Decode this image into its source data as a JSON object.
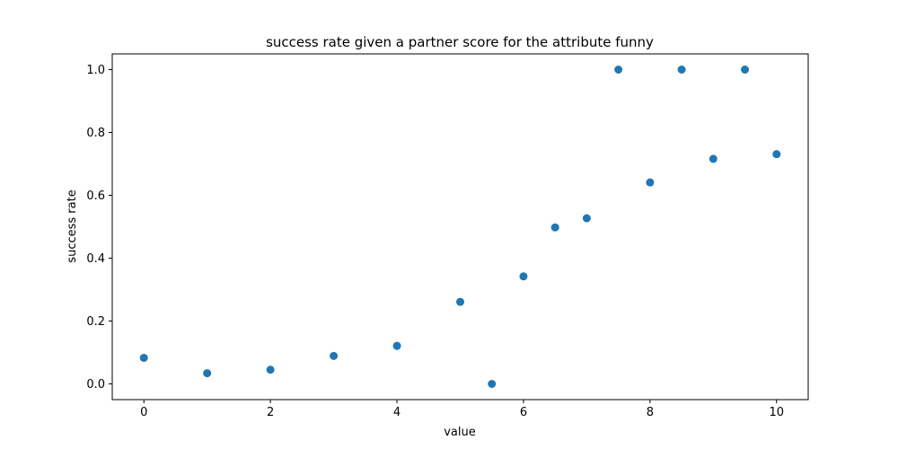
{
  "chart_data": {
    "type": "scatter",
    "title": "success rate given a partner score for the attribute funny",
    "xlabel": "value",
    "ylabel": "success rate",
    "xlim": [
      -0.5,
      10.5
    ],
    "ylim": [
      -0.05,
      1.05
    ],
    "x_ticks": [
      0,
      2,
      4,
      6,
      8,
      10
    ],
    "x_tick_labels": [
      "0",
      "2",
      "4",
      "6",
      "8",
      "10"
    ],
    "y_ticks": [
      0.0,
      0.2,
      0.4,
      0.6,
      0.8,
      1.0
    ],
    "y_tick_labels": [
      "0.0",
      "0.2",
      "0.4",
      "0.6",
      "0.8",
      "1.0"
    ],
    "grid": false,
    "marker_color": "#1f77b4",
    "series": [
      {
        "x": [
          0,
          1,
          2,
          3,
          4,
          5,
          5.5,
          6,
          6.5,
          7,
          7.5,
          8,
          8.5,
          9,
          9.5,
          10
        ],
        "y": [
          0.083,
          0.034,
          0.045,
          0.089,
          0.121,
          0.261,
          0.0,
          0.342,
          0.498,
          0.527,
          1.0,
          0.641,
          1.0,
          0.716,
          1.0,
          0.731
        ]
      }
    ]
  }
}
